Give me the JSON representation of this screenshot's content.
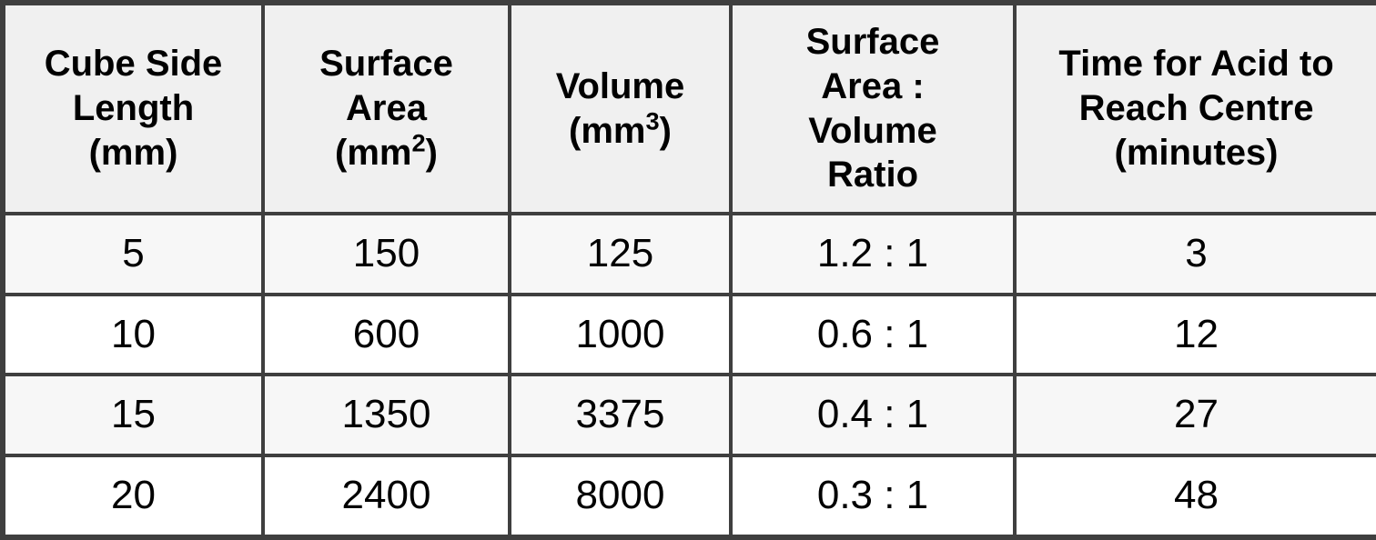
{
  "colors": {
    "border": "#3f3f3f",
    "header_bg": "#f0f0f0",
    "row_alt_bg": "#f7f7f7",
    "row_bg": "#ffffff",
    "text": "#000000"
  },
  "table": {
    "headers": [
      {
        "name": "cube-side-length",
        "lines": [
          {
            "text": "Cube Side"
          },
          {
            "text": "Length"
          },
          {
            "text": "(mm)"
          }
        ]
      },
      {
        "name": "surface-area",
        "lines": [
          {
            "text": "Surface"
          },
          {
            "text": "Area"
          },
          {
            "text": "(mm",
            "sup": "2",
            "after": ")"
          }
        ]
      },
      {
        "name": "volume",
        "lines": [
          {
            "text": "Volume"
          },
          {
            "text": "(mm",
            "sup": "3",
            "after": ")"
          }
        ]
      },
      {
        "name": "surface-area-volume-ratio",
        "lines": [
          {
            "text": "Surface"
          },
          {
            "text": "Area :"
          },
          {
            "text": "Volume"
          },
          {
            "text": "Ratio"
          }
        ]
      },
      {
        "name": "time-for-acid",
        "lines": [
          {
            "text": "Time for Acid to"
          },
          {
            "text": "Reach Centre"
          },
          {
            "text": "(minutes)"
          }
        ]
      }
    ],
    "rows": [
      [
        "5",
        "150",
        "125",
        "1.2 : 1",
        "3"
      ],
      [
        "10",
        "600",
        "1000",
        "0.6 : 1",
        "12"
      ],
      [
        "15",
        "1350",
        "3375",
        "0.4 : 1",
        "27"
      ],
      [
        "20",
        "2400",
        "8000",
        "0.3 : 1",
        "48"
      ]
    ]
  },
  "chart_data": {
    "type": "table",
    "title": "",
    "columns": [
      "Cube Side Length (mm)",
      "Surface Area (mm²)",
      "Volume (mm³)",
      "Surface Area : Volume Ratio",
      "Time for Acid to Reach Centre (minutes)"
    ],
    "rows": [
      [
        5,
        150,
        125,
        "1.2 : 1",
        3
      ],
      [
        10,
        600,
        1000,
        "0.6 : 1",
        12
      ],
      [
        15,
        1350,
        3375,
        "0.4 : 1",
        27
      ],
      [
        20,
        2400,
        8000,
        "0.3 : 1",
        48
      ]
    ]
  }
}
